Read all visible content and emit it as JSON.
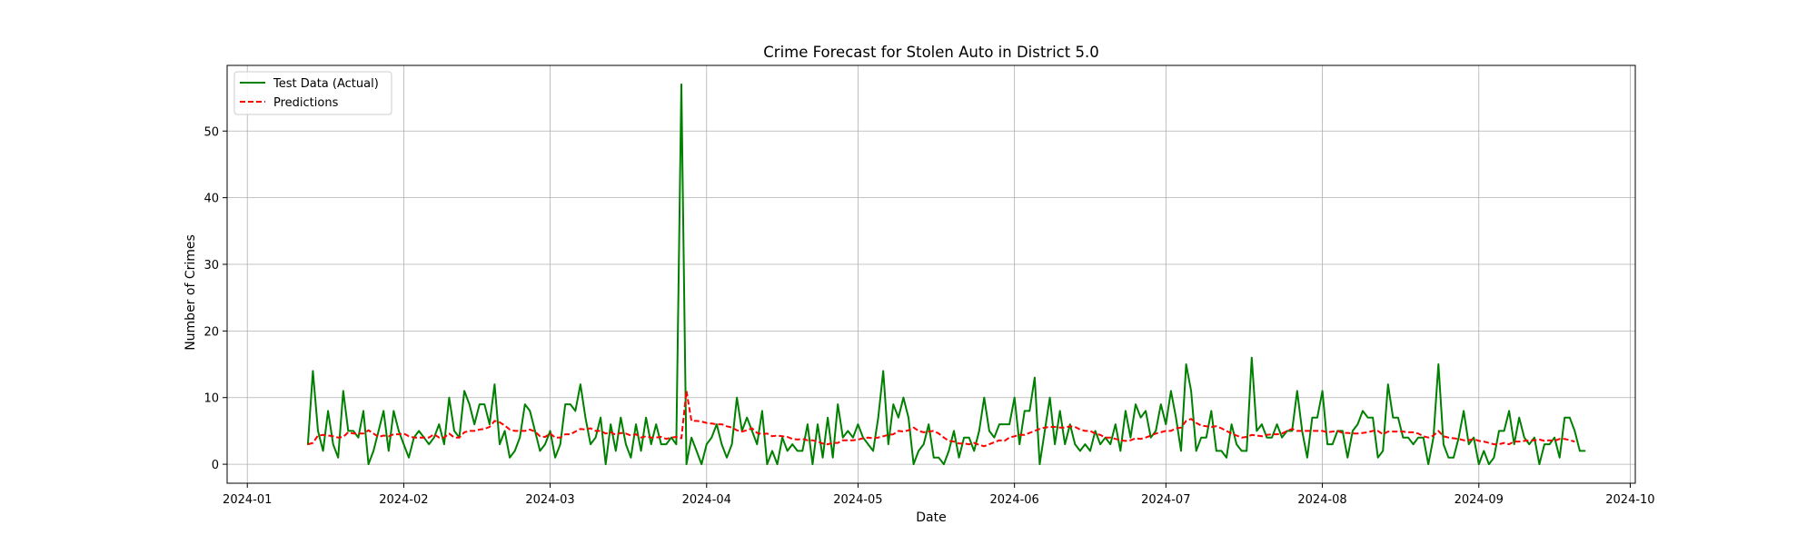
{
  "chart_data": {
    "type": "line",
    "title": "Crime Forecast for Stolen Auto in District 5.0",
    "xlabel": "Date",
    "ylabel": "Number of Crimes",
    "x_start": "2024-01-13",
    "xlim": [
      "2023-12-28",
      "2024-10-02"
    ],
    "ylim": [
      -2.85,
      59.85
    ],
    "x_ticks": [
      "2024-01-01",
      "2024-02-01",
      "2024-03-01",
      "2024-04-01",
      "2024-05-01",
      "2024-06-01",
      "2024-07-01",
      "2024-08-01",
      "2024-09-01",
      "2024-10-01"
    ],
    "x_tick_labels": [
      "2024-01",
      "2024-02",
      "2024-03",
      "2024-04",
      "2024-05",
      "2024-06",
      "2024-07",
      "2024-08",
      "2024-09",
      "2024-10"
    ],
    "y_ticks": [
      0,
      10,
      20,
      30,
      40,
      50
    ],
    "grid": true,
    "legend_position": "top-left",
    "series": [
      {
        "name": "Test Data (Actual)",
        "color": "#008000",
        "style": "solid",
        "values": [
          3,
          14,
          5,
          2,
          8,
          3,
          1,
          11,
          5,
          5,
          4,
          8,
          0,
          2,
          5,
          8,
          2,
          8,
          5,
          3,
          1,
          4,
          5,
          4,
          3,
          4,
          6,
          3,
          10,
          5,
          4,
          11,
          9,
          6,
          9,
          9,
          6,
          12,
          3,
          5,
          1,
          2,
          4,
          9,
          8,
          5,
          2,
          3,
          5,
          1,
          3,
          9,
          9,
          8,
          12,
          7,
          3,
          4,
          7,
          0,
          6,
          2,
          7,
          3,
          1,
          6,
          2,
          7,
          3,
          6,
          3,
          3,
          4,
          3,
          57,
          0,
          4,
          2,
          0,
          3,
          4,
          6,
          3,
          1,
          3,
          10,
          5,
          7,
          5,
          3,
          8,
          0,
          2,
          0,
          4,
          2,
          3,
          2,
          2,
          6,
          0,
          6,
          1,
          7,
          1,
          9,
          4,
          5,
          4,
          6,
          4,
          3,
          2,
          7,
          14,
          3,
          9,
          7,
          10,
          7,
          0,
          2,
          3,
          6,
          1,
          1,
          0,
          2,
          5,
          1,
          4,
          4,
          2,
          5,
          10,
          5,
          4,
          6,
          6,
          6,
          10,
          3,
          8,
          8,
          13,
          0,
          5,
          10,
          3,
          8,
          3,
          6,
          3,
          2,
          3,
          2,
          5,
          3,
          4,
          3,
          6,
          2,
          8,
          4,
          9,
          7,
          8,
          4,
          5,
          9,
          6,
          11,
          7,
          2,
          15,
          11,
          2,
          4,
          4,
          8,
          2,
          2,
          1,
          6,
          3,
          2,
          2,
          16,
          5,
          6,
          4,
          4,
          6,
          4,
          5,
          5,
          11,
          5,
          1,
          7,
          7,
          11,
          3,
          3,
          5,
          5,
          1,
          5,
          6,
          8,
          7,
          7,
          1,
          2,
          12,
          7,
          7,
          4,
          4,
          3,
          4,
          4,
          0,
          4,
          15,
          3,
          1,
          1,
          4,
          8,
          3,
          4,
          0,
          2,
          0,
          1,
          5,
          5,
          8,
          3,
          7,
          4,
          3,
          4,
          0,
          3,
          3,
          4,
          1,
          7,
          7,
          5,
          2,
          2
        ]
      },
      {
        "name": "Predictions",
        "color": "#ff0000",
        "style": "dashed",
        "values": [
          3,
          3.2,
          4.3,
          4.4,
          4.3,
          4.2,
          4,
          4.1,
          4.8,
          4.6,
          4.6,
          4.6,
          5.1,
          4.6,
          4.1,
          4.3,
          4.2,
          4.5,
          4.5,
          4.6,
          4.2,
          4,
          4,
          4,
          4,
          4.5,
          4,
          4,
          4.6,
          4,
          4,
          4.8,
          5,
          5,
          5.2,
          5.3,
          5.6,
          6.5,
          6.3,
          5.8,
          5.2,
          5,
          5,
          5,
          5.2,
          4.9,
          4.2,
          4.1,
          4.6,
          4,
          4,
          4.5,
          4.5,
          4.9,
          5.3,
          5.2,
          5.4,
          5,
          5,
          4.6,
          4.8,
          4.4,
          4.7,
          4.6,
          4.3,
          4.5,
          4,
          4.2,
          4,
          4,
          4.1,
          3.8,
          4,
          4.1,
          3.9,
          11,
          6.5,
          6.5,
          6.4,
          6.2,
          6.1,
          6,
          6,
          5.7,
          5.5,
          5.1,
          4.9,
          5.1,
          5.4,
          4.7,
          4.5,
          4.6,
          4.2,
          4.3,
          4.2,
          4.1,
          3.8,
          3.7,
          3.8,
          3.6,
          3.6,
          3.4,
          3.1,
          3,
          3.2,
          3.2,
          3.6,
          3.6,
          3.6,
          3.7,
          3.9,
          4,
          3.9,
          4,
          4.2,
          4.4,
          4.5,
          5,
          4.9,
          5.1,
          5.5,
          5,
          4.8,
          4.9,
          5,
          4.6,
          4,
          3.5,
          3.4,
          3.1,
          3.1,
          3,
          3.2,
          2.9,
          2.7,
          3,
          3.3,
          3.6,
          3.5,
          4,
          4.2,
          4.4,
          4.4,
          4.7,
          5,
          5.3,
          5.5,
          5.6,
          5.6,
          5.5,
          5.5,
          5.7,
          5.6,
          5.2,
          5,
          5,
          4.6,
          4.4,
          4,
          4,
          3.8,
          3.6,
          3.5,
          3.6,
          3.9,
          3.8,
          4,
          4.3,
          4.6,
          4.8,
          5,
          5,
          5.4,
          5.5,
          6.5,
          6.8,
          6.2,
          5.8,
          5.7,
          5.6,
          5.7,
          5.4,
          5,
          4.6,
          4.3,
          4,
          4.1,
          4.4,
          4.3,
          4.2,
          4.4,
          4.5,
          4.5,
          4.6,
          5,
          5.3,
          5,
          5,
          5,
          5,
          5,
          5,
          4.8,
          4.9,
          5,
          4.7,
          4.7,
          4.6,
          4.6,
          4.7,
          4.8,
          5,
          5,
          4.5,
          4.9,
          4.9,
          4.9,
          4.9,
          4.8,
          4.8,
          4.6,
          4.2,
          4,
          4.3,
          5,
          4.2,
          4,
          3.9,
          3.8,
          3.6,
          3.6,
          3.8,
          3.5,
          3.4,
          3.2,
          3,
          3,
          3.2,
          3,
          3.4,
          3.4,
          3.5,
          3.6,
          3.6,
          3.7,
          3.5,
          3.6,
          3.5,
          3.8,
          3.8,
          3.6,
          3.4
        ]
      }
    ]
  }
}
